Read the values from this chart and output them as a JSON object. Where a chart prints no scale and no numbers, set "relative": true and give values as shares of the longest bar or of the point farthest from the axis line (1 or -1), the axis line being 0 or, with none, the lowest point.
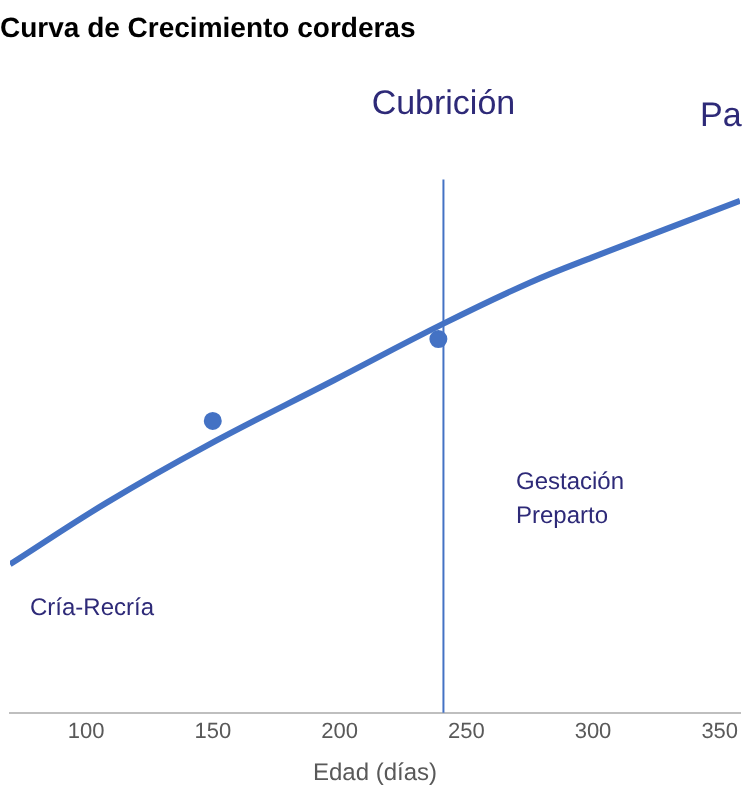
{
  "chart_data": {
    "type": "line",
    "title": "Curva de Crecimiento corderas",
    "xlabel": "Edad (días)",
    "relative": true,
    "xlim": [
      70,
      358
    ],
    "xticks": [
      100,
      150,
      200,
      250,
      300,
      350
    ],
    "grid": false,
    "series": [
      {
        "type": "line",
        "color": "#4472c4",
        "x": [
          70,
          108,
          147,
          198,
          241,
          275,
          300,
          358
        ],
        "values": [
          0.29,
          0.41,
          0.52,
          0.65,
          0.76,
          0.84,
          0.89,
          1.0
        ]
      },
      {
        "type": "scatter",
        "color": "#4472c4",
        "x": [
          150,
          239
        ],
        "values": [
          0.57,
          0.73
        ]
      }
    ],
    "ref_lines": [
      {
        "axis": "x",
        "value": 241,
        "label": "Cubrición",
        "color": "#4472c4"
      }
    ],
    "annotations": [
      "Gestación\nPreparto",
      "Cría-Recría",
      "Pa"
    ]
  }
}
